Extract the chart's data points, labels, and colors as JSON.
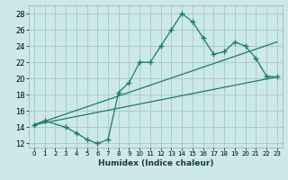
{
  "title": "",
  "xlabel": "Humidex (Indice chaleur)",
  "bg_color": "#cce8e8",
  "grid_color": "#aacccc",
  "line_color": "#1a7a6e",
  "xlim": [
    -0.5,
    23.5
  ],
  "ylim": [
    11.5,
    29
  ],
  "xticks": [
    0,
    1,
    2,
    3,
    4,
    5,
    6,
    7,
    8,
    9,
    10,
    11,
    12,
    13,
    14,
    15,
    16,
    17,
    18,
    19,
    20,
    21,
    22,
    23
  ],
  "yticks": [
    12,
    14,
    16,
    18,
    20,
    22,
    24,
    26,
    28
  ],
  "curve_x": [
    0,
    1,
    3,
    4,
    5,
    6,
    7,
    8,
    9,
    10,
    11,
    12,
    13,
    14,
    15,
    16,
    17,
    18,
    19,
    20,
    21,
    22,
    23
  ],
  "curve_y": [
    14.3,
    14.8,
    14.0,
    13.3,
    12.5,
    12.0,
    12.5,
    18.3,
    19.5,
    22.0,
    22.0,
    24.0,
    26.0,
    28.0,
    27.0,
    25.0,
    23.0,
    23.3,
    24.5,
    24.0,
    22.5,
    20.3,
    20.2
  ],
  "line1_x": [
    0,
    23
  ],
  "line1_y": [
    14.3,
    20.2
  ],
  "line2_x": [
    0,
    23
  ],
  "line2_y": [
    14.3,
    24.5
  ]
}
